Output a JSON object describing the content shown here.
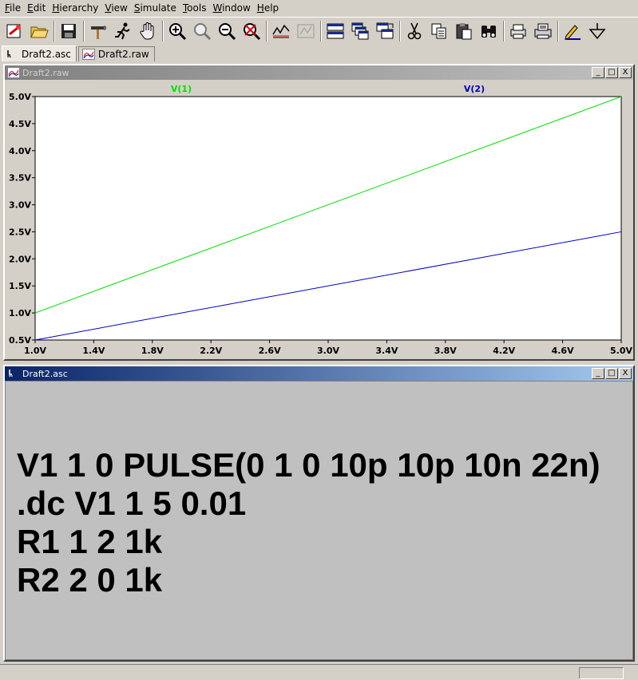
{
  "menu": [
    {
      "label": "File",
      "key": "F",
      "rest": "ile"
    },
    {
      "label": "Edit",
      "key": "E",
      "rest": "dit"
    },
    {
      "label": "Hierarchy",
      "key": "H",
      "rest": "ierarchy"
    },
    {
      "label": "View",
      "key": "V",
      "rest": "iew"
    },
    {
      "label": "Simulate",
      "key": "S",
      "rest": "imulate"
    },
    {
      "label": "Tools",
      "key": "T",
      "rest": "ools"
    },
    {
      "label": "Window",
      "key": "W",
      "rest": "indow"
    },
    {
      "label": "Help",
      "key": "H",
      "rest": "elp"
    }
  ],
  "tabs": [
    {
      "label": "Draft2.asc",
      "icon": "schematic-icon"
    },
    {
      "label": "Draft2.raw",
      "icon": "waveform-icon"
    }
  ],
  "plot_window": {
    "title": "Draft2.raw",
    "buttons": [
      "_",
      "□",
      "X"
    ]
  },
  "schematic_window": {
    "title": "Draft2.asc",
    "buttons": [
      "_",
      "□",
      "X"
    ],
    "netlist": [
      "V1 1 0 PULSE(0 1 0 10p 10p 10n 22n)",
      ".dc V1 1 5 0.01",
      "R1 1 2 1k",
      "R2 2 0 1k"
    ]
  },
  "chart_data": {
    "type": "line",
    "xlim": [
      1.0,
      5.0
    ],
    "ylim": [
      0.5,
      5.0
    ],
    "x_ticks": [
      "1.0V",
      "1.4V",
      "1.8V",
      "2.2V",
      "2.6V",
      "3.0V",
      "3.4V",
      "3.8V",
      "4.2V",
      "4.6V",
      "5.0V"
    ],
    "y_ticks": [
      "0.5V",
      "1.0V",
      "1.5V",
      "2.0V",
      "2.5V",
      "3.0V",
      "3.5V",
      "4.0V",
      "4.5V",
      "5.0V"
    ],
    "series": [
      {
        "name": "V(1)",
        "color": "#00e000",
        "x": [
          1.0,
          5.0
        ],
        "y": [
          1.0,
          5.0
        ]
      },
      {
        "name": "V(2)",
        "color": "#0000c0",
        "x": [
          1.0,
          5.0
        ],
        "y": [
          0.5,
          2.5
        ]
      }
    ],
    "grid": false,
    "background": "#ffffff"
  }
}
